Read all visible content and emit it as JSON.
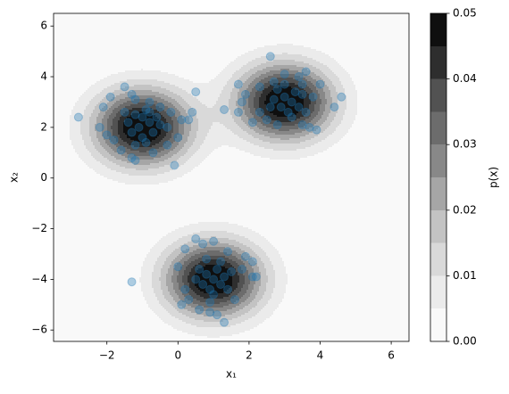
{
  "chart_data": {
    "type": "contour-scatter",
    "xlabel": "x₁",
    "ylabel": "x₂",
    "colorbar_label": "p(x)",
    "xlim": [
      -3.5,
      6.5
    ],
    "ylim": [
      -6.45,
      6.5
    ],
    "xticks": [
      {
        "value": -2,
        "label": "−2"
      },
      0,
      2,
      4,
      6
    ],
    "yticks": [
      {
        "value": -6,
        "label": "−6"
      },
      {
        "value": -4,
        "label": "−4"
      },
      {
        "value": -2,
        "label": "−2"
      },
      0,
      2,
      4,
      6
    ],
    "colormap": "Greys",
    "levels": [
      0,
      0.005,
      0.01,
      0.015,
      0.02,
      0.025,
      0.03,
      0.035,
      0.04,
      0.045,
      0.05
    ],
    "colorbar_ticks": [
      {
        "value": 0,
        "label": "0.00"
      },
      {
        "value": 0.01,
        "label": "0.01"
      },
      {
        "value": 0.02,
        "label": "0.02"
      },
      {
        "value": 0.03,
        "label": "0.03"
      },
      {
        "value": 0.04,
        "label": "0.04"
      },
      {
        "value": 0.05,
        "label": "0.05"
      }
    ],
    "density_components": [
      {
        "mean": [
          -1,
          2
        ],
        "std": [
          0.95,
          1.05
        ],
        "weight": 0.333
      },
      {
        "mean": [
          3,
          3
        ],
        "std": [
          0.95,
          1.05
        ],
        "weight": 0.333
      },
      {
        "mean": [
          1,
          -4
        ],
        "std": [
          0.95,
          1.05
        ],
        "weight": 0.333
      }
    ],
    "series": [
      {
        "color": "#1f77b4",
        "x": [
          -2.8,
          -2.1,
          -2.2,
          -1.9,
          -1.5,
          -1.2,
          -2.0,
          -1.8,
          -1.6,
          -1.3,
          -1.2,
          -0.7,
          -0.3,
          0.0,
          0.1,
          0.3,
          0.4,
          0.5,
          -0.1,
          1.3,
          -0.5,
          -0.3,
          -0.2,
          -1.3,
          -0.8,
          -1.2,
          -1.0,
          -0.9,
          -1.1,
          -0.8,
          -1.4,
          -0.7,
          -1.0,
          -1.3,
          -0.6,
          -0.9,
          -1.5,
          -0.5,
          -1.2,
          -0.8,
          1.7,
          1.8,
          1.9,
          1.7,
          2.1,
          2.3,
          2.6,
          2.3,
          2.7,
          3.0,
          3.6,
          4.0,
          4.4,
          4.6,
          3.9,
          3.7,
          3.5,
          2.8,
          2.5,
          3.4,
          3.0,
          3.2,
          2.9,
          3.3,
          3.1,
          2.7,
          3.5,
          3.4,
          2.8,
          3.6,
          3.0,
          3.8,
          3.2,
          2.6,
          3.5,
          -1.3,
          0.0,
          0.2,
          0.1,
          0.3,
          0.2,
          0.5,
          0.7,
          1.0,
          1.4,
          1.8,
          2.1,
          2.1,
          2.2,
          1.9,
          1.3,
          1.1,
          0.9,
          0.6,
          1.6,
          1.0,
          0.8,
          1.2,
          0.9,
          1.1,
          0.7,
          1.3,
          0.6,
          1.0,
          1.4,
          0.8,
          1.2,
          0.5,
          1.5,
          0.9
        ],
        "y": [
          2.4,
          2.8,
          2.0,
          3.2,
          3.6,
          3.1,
          1.7,
          1.5,
          1.1,
          0.8,
          0.7,
          1.0,
          1.3,
          1.6,
          2.3,
          2.3,
          2.6,
          3.4,
          0.5,
          2.7,
          2.8,
          2.0,
          2.6,
          3.3,
          3.0,
          2.5,
          2.4,
          2.7,
          2.0,
          2.2,
          2.2,
          1.8,
          1.6,
          1.8,
          2.4,
          1.4,
          2.6,
          2.1,
          1.3,
          2.6,
          2.6,
          3.0,
          3.3,
          3.7,
          2.2,
          2.6,
          4.8,
          3.6,
          3.8,
          4.1,
          4.2,
          3.7,
          2.8,
          3.2,
          1.9,
          2.0,
          2.1,
          2.1,
          2.3,
          4.0,
          3.2,
          3.0,
          2.8,
          3.4,
          2.6,
          3.1,
          3.3,
          2.8,
          3.5,
          2.6,
          3.7,
          3.2,
          2.4,
          2.8,
          3.7,
          -4.1,
          -3.5,
          -4.4,
          -5.0,
          -4.8,
          -2.8,
          -2.4,
          -2.6,
          -2.5,
          -2.9,
          -3.6,
          -3.3,
          -3.9,
          -3.9,
          -3.1,
          -5.7,
          -5.4,
          -5.3,
          -5.2,
          -4.8,
          -4.0,
          -3.8,
          -4.2,
          -4.4,
          -3.6,
          -4.2,
          -3.9,
          -3.6,
          -4.6,
          -4.4,
          -3.2,
          -3.3,
          -4.0,
          -3.7,
          -4.9
        ]
      }
    ]
  }
}
